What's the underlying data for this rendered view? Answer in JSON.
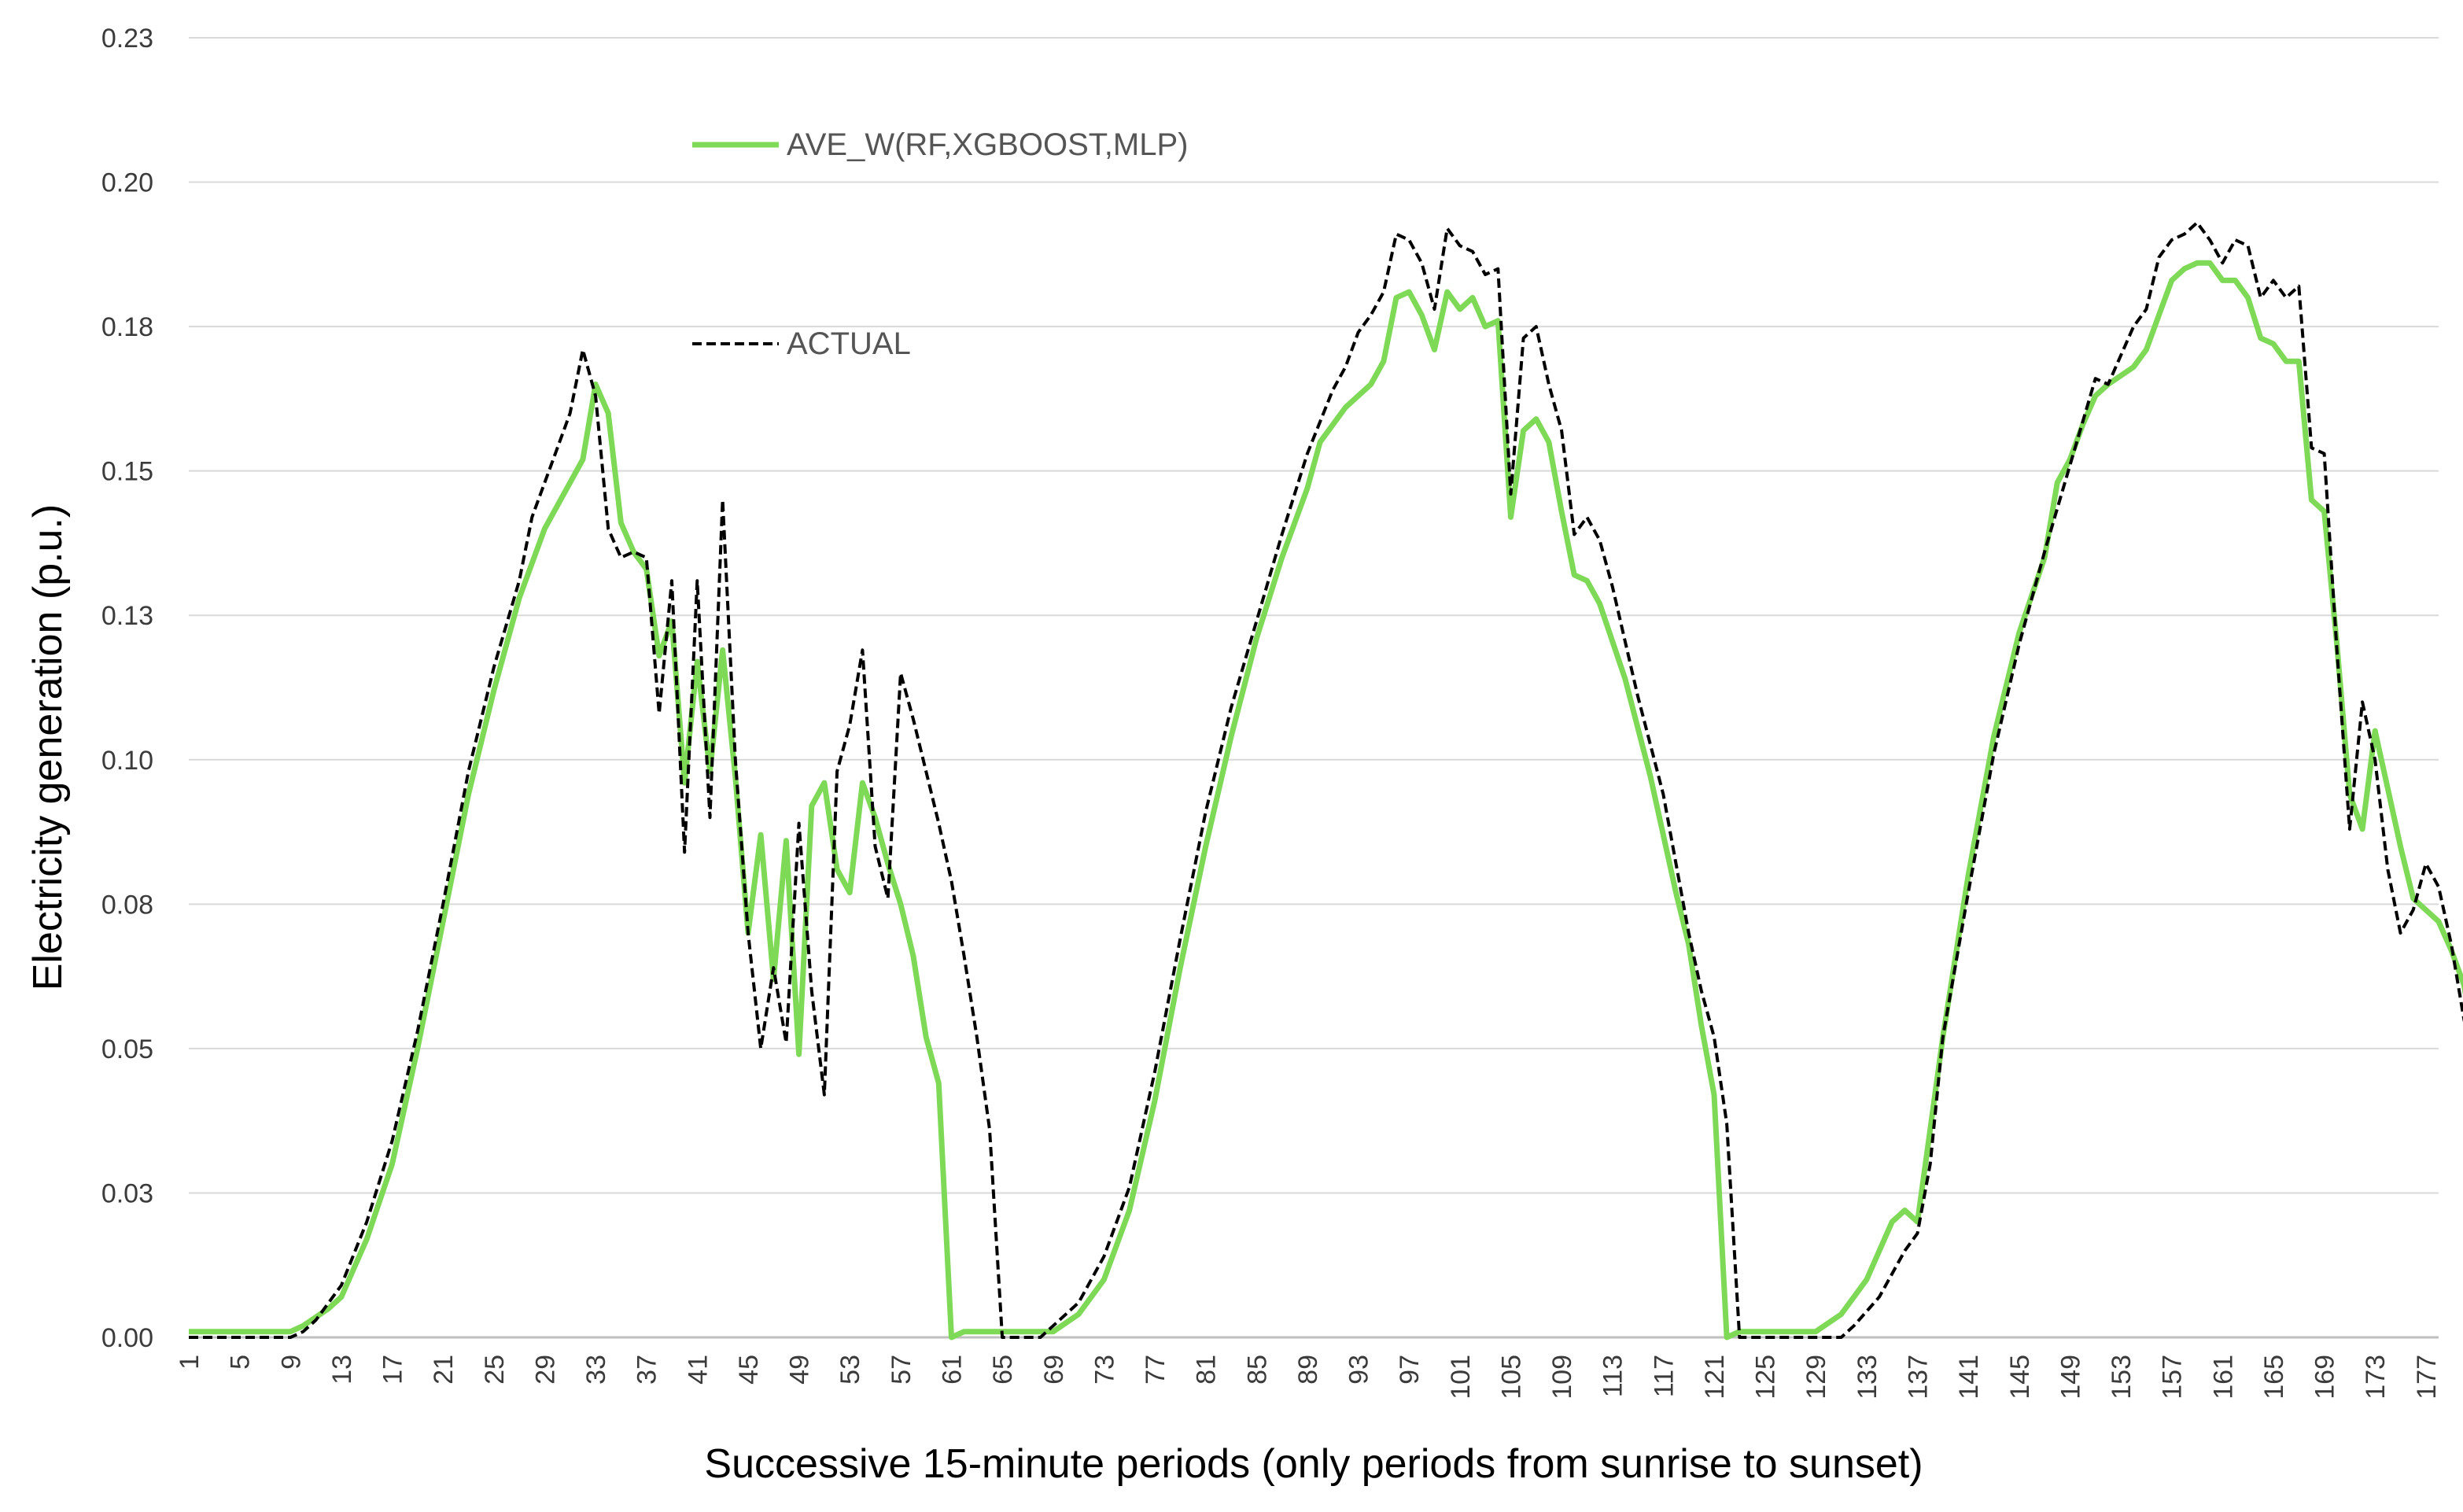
{
  "chart_data": {
    "type": "line",
    "title": "",
    "xlabel": "Successive 15-minute periods (only periods from sunrise to sunset)",
    "ylabel": "Electricity generation (p.u.)",
    "ylim": [
      0,
      0.225
    ],
    "xlim": [
      1,
      178
    ],
    "y_ticks": [
      "0.00",
      "0.03",
      "0.05",
      "0.08",
      "0.10",
      "0.13",
      "0.15",
      "0.18",
      "0.20",
      "0.23"
    ],
    "x_ticks": [
      "1",
      "5",
      "9",
      "13",
      "17",
      "21",
      "25",
      "29",
      "33",
      "37",
      "41",
      "45",
      "49",
      "53",
      "57",
      "61",
      "65",
      "69",
      "73",
      "77",
      "81",
      "85",
      "89",
      "93",
      "97",
      "101",
      "105",
      "109",
      "113",
      "117",
      "121",
      "125",
      "129",
      "133",
      "137",
      "141",
      "145",
      "149",
      "153",
      "157",
      "161",
      "165",
      "169",
      "173",
      "177"
    ],
    "grid": "horizontal",
    "legend_position": "top-left",
    "colors": {
      "series_0": "#7ed957",
      "series_1": "#000000",
      "grid": "#d9d9d9"
    },
    "series": [
      {
        "name": "AVE_W(RF,XGBOOST,MLP)",
        "style": "solid",
        "points": [
          [
            1,
            0.001
          ],
          [
            9,
            0.001
          ],
          [
            10,
            0.002
          ],
          [
            12,
            0.005
          ],
          [
            13,
            0.007
          ],
          [
            15,
            0.017
          ],
          [
            17,
            0.03
          ],
          [
            19,
            0.05
          ],
          [
            21,
            0.072
          ],
          [
            23,
            0.094
          ],
          [
            25,
            0.112
          ],
          [
            27,
            0.128
          ],
          [
            29,
            0.14
          ],
          [
            31,
            0.148
          ],
          [
            32,
            0.152
          ],
          [
            33,
            0.165
          ],
          [
            34,
            0.16
          ],
          [
            35,
            0.141
          ],
          [
            36,
            0.136
          ],
          [
            37,
            0.133
          ],
          [
            38,
            0.118
          ],
          [
            39,
            0.124
          ],
          [
            40,
            0.096
          ],
          [
            41,
            0.117
          ],
          [
            42,
            0.098
          ],
          [
            43,
            0.119
          ],
          [
            44,
            0.097
          ],
          [
            45,
            0.07
          ],
          [
            46,
            0.087
          ],
          [
            47,
            0.062
          ],
          [
            48,
            0.086
          ],
          [
            49,
            0.049
          ],
          [
            50,
            0.092
          ],
          [
            51,
            0.096
          ],
          [
            52,
            0.081
          ],
          [
            53,
            0.077
          ],
          [
            54,
            0.096
          ],
          [
            55,
            0.09
          ],
          [
            56,
            0.082
          ],
          [
            57,
            0.075
          ],
          [
            58,
            0.066
          ],
          [
            59,
            0.052
          ],
          [
            60,
            0.044
          ],
          [
            61,
            0.0
          ],
          [
            62,
            0.001
          ],
          [
            68,
            0.001
          ],
          [
            69,
            0.001
          ],
          [
            71,
            0.004
          ],
          [
            73,
            0.01
          ],
          [
            75,
            0.022
          ],
          [
            77,
            0.041
          ],
          [
            79,
            0.064
          ],
          [
            81,
            0.085
          ],
          [
            83,
            0.104
          ],
          [
            85,
            0.121
          ],
          [
            87,
            0.135
          ],
          [
            89,
            0.147
          ],
          [
            90,
            0.155
          ],
          [
            92,
            0.161
          ],
          [
            94,
            0.165
          ],
          [
            95,
            0.169
          ],
          [
            96,
            0.18
          ],
          [
            97,
            0.181
          ],
          [
            98,
            0.177
          ],
          [
            99,
            0.171
          ],
          [
            100,
            0.181
          ],
          [
            101,
            0.178
          ],
          [
            102,
            0.18
          ],
          [
            103,
            0.175
          ],
          [
            104,
            0.176
          ],
          [
            105,
            0.142
          ],
          [
            106,
            0.157
          ],
          [
            107,
            0.159
          ],
          [
            108,
            0.155
          ],
          [
            109,
            0.143
          ],
          [
            110,
            0.132
          ],
          [
            111,
            0.131
          ],
          [
            112,
            0.127
          ],
          [
            114,
            0.114
          ],
          [
            116,
            0.097
          ],
          [
            118,
            0.077
          ],
          [
            119,
            0.068
          ],
          [
            120,
            0.054
          ],
          [
            121,
            0.042
          ],
          [
            122,
            0.0
          ],
          [
            123,
            0.001
          ],
          [
            129,
            0.001
          ],
          [
            131,
            0.004
          ],
          [
            133,
            0.01
          ],
          [
            135,
            0.02
          ],
          [
            136,
            0.022
          ],
          [
            137,
            0.02
          ],
          [
            138,
            0.036
          ],
          [
            139,
            0.052
          ],
          [
            141,
            0.08
          ],
          [
            143,
            0.104
          ],
          [
            145,
            0.122
          ],
          [
            147,
            0.135
          ],
          [
            148,
            0.148
          ],
          [
            149,
            0.152
          ],
          [
            150,
            0.158
          ],
          [
            151,
            0.163
          ],
          [
            152,
            0.165
          ],
          [
            154,
            0.168
          ],
          [
            155,
            0.171
          ],
          [
            156,
            0.177
          ],
          [
            157,
            0.183
          ],
          [
            158,
            0.185
          ],
          [
            159,
            0.186
          ],
          [
            160,
            0.186
          ],
          [
            161,
            0.183
          ],
          [
            162,
            0.183
          ],
          [
            163,
            0.18
          ],
          [
            164,
            0.173
          ],
          [
            165,
            0.172
          ],
          [
            166,
            0.169
          ],
          [
            167,
            0.169
          ],
          [
            168,
            0.145
          ],
          [
            169,
            0.143
          ],
          [
            170,
            0.12
          ],
          [
            171,
            0.094
          ],
          [
            172,
            0.088
          ],
          [
            173,
            0.105
          ],
          [
            174,
            0.095
          ],
          [
            175,
            0.085
          ],
          [
            176,
            0.076
          ],
          [
            177,
            0.074
          ],
          [
            178,
            0.072
          ],
          [
            179,
            0.067
          ],
          [
            180,
            0.061
          ],
          [
            181,
            0.047
          ]
        ]
      },
      {
        "name": "ACTUAL",
        "style": "dashed",
        "points": [
          [
            1,
            0.0
          ],
          [
            9,
            0.0
          ],
          [
            10,
            0.001
          ],
          [
            11,
            0.003
          ],
          [
            13,
            0.009
          ],
          [
            15,
            0.02
          ],
          [
            17,
            0.034
          ],
          [
            19,
            0.053
          ],
          [
            21,
            0.075
          ],
          [
            23,
            0.098
          ],
          [
            25,
            0.116
          ],
          [
            27,
            0.131
          ],
          [
            28,
            0.142
          ],
          [
            30,
            0.154
          ],
          [
            31,
            0.16
          ],
          [
            32,
            0.171
          ],
          [
            33,
            0.163
          ],
          [
            34,
            0.14
          ],
          [
            35,
            0.135
          ],
          [
            36,
            0.136
          ],
          [
            37,
            0.135
          ],
          [
            38,
            0.108
          ],
          [
            39,
            0.131
          ],
          [
            40,
            0.084
          ],
          [
            41,
            0.131
          ],
          [
            42,
            0.09
          ],
          [
            43,
            0.145
          ],
          [
            44,
            0.1
          ],
          [
            45,
            0.07
          ],
          [
            46,
            0.05
          ],
          [
            47,
            0.064
          ],
          [
            48,
            0.051
          ],
          [
            49,
            0.089
          ],
          [
            50,
            0.06
          ],
          [
            51,
            0.042
          ],
          [
            52,
            0.098
          ],
          [
            53,
            0.106
          ],
          [
            54,
            0.119
          ],
          [
            55,
            0.085
          ],
          [
            56,
            0.076
          ],
          [
            57,
            0.115
          ],
          [
            58,
            0.107
          ],
          [
            59,
            0.098
          ],
          [
            60,
            0.089
          ],
          [
            61,
            0.079
          ],
          [
            62,
            0.066
          ],
          [
            63,
            0.052
          ],
          [
            64,
            0.036
          ],
          [
            65,
            0.0
          ],
          [
            66,
            0.0
          ],
          [
            67,
            0.0
          ],
          [
            68,
            0.0
          ],
          [
            69,
            0.002
          ],
          [
            71,
            0.006
          ],
          [
            73,
            0.014
          ],
          [
            75,
            0.026
          ],
          [
            77,
            0.046
          ],
          [
            79,
            0.069
          ],
          [
            81,
            0.091
          ],
          [
            83,
            0.109
          ],
          [
            85,
            0.124
          ],
          [
            87,
            0.139
          ],
          [
            89,
            0.153
          ],
          [
            91,
            0.164
          ],
          [
            92,
            0.168
          ],
          [
            93,
            0.174
          ],
          [
            94,
            0.177
          ],
          [
            95,
            0.181
          ],
          [
            96,
            0.191
          ],
          [
            97,
            0.19
          ],
          [
            98,
            0.186
          ],
          [
            99,
            0.178
          ],
          [
            100,
            0.192
          ],
          [
            101,
            0.189
          ],
          [
            102,
            0.188
          ],
          [
            103,
            0.184
          ],
          [
            104,
            0.185
          ],
          [
            105,
            0.146
          ],
          [
            106,
            0.173
          ],
          [
            107,
            0.175
          ],
          [
            108,
            0.165
          ],
          [
            109,
            0.157
          ],
          [
            110,
            0.139
          ],
          [
            111,
            0.142
          ],
          [
            112,
            0.138
          ],
          [
            113,
            0.13
          ],
          [
            115,
            0.111
          ],
          [
            117,
            0.094
          ],
          [
            119,
            0.07
          ],
          [
            120,
            0.06
          ],
          [
            121,
            0.052
          ],
          [
            122,
            0.037
          ],
          [
            123,
            0.0
          ],
          [
            124,
            0.0
          ],
          [
            131,
            0.0
          ],
          [
            132,
            0.002
          ],
          [
            134,
            0.007
          ],
          [
            136,
            0.015
          ],
          [
            137,
            0.018
          ],
          [
            138,
            0.03
          ],
          [
            139,
            0.052
          ],
          [
            141,
            0.077
          ],
          [
            143,
            0.101
          ],
          [
            145,
            0.12
          ],
          [
            147,
            0.136
          ],
          [
            149,
            0.151
          ],
          [
            151,
            0.166
          ],
          [
            152,
            0.165
          ],
          [
            154,
            0.175
          ],
          [
            155,
            0.178
          ],
          [
            156,
            0.187
          ],
          [
            157,
            0.19
          ],
          [
            158,
            0.191
          ],
          [
            159,
            0.193
          ],
          [
            160,
            0.19
          ],
          [
            161,
            0.186
          ],
          [
            162,
            0.19
          ],
          [
            163,
            0.189
          ],
          [
            164,
            0.18
          ],
          [
            165,
            0.183
          ],
          [
            166,
            0.18
          ],
          [
            167,
            0.182
          ],
          [
            168,
            0.154
          ],
          [
            169,
            0.153
          ],
          [
            170,
            0.119
          ],
          [
            171,
            0.088
          ],
          [
            172,
            0.11
          ],
          [
            173,
            0.1
          ],
          [
            174,
            0.081
          ],
          [
            175,
            0.07
          ],
          [
            176,
            0.074
          ],
          [
            177,
            0.082
          ],
          [
            178,
            0.078
          ],
          [
            179,
            0.068
          ],
          [
            180,
            0.055
          ],
          [
            181,
            0.046
          ]
        ]
      }
    ]
  }
}
